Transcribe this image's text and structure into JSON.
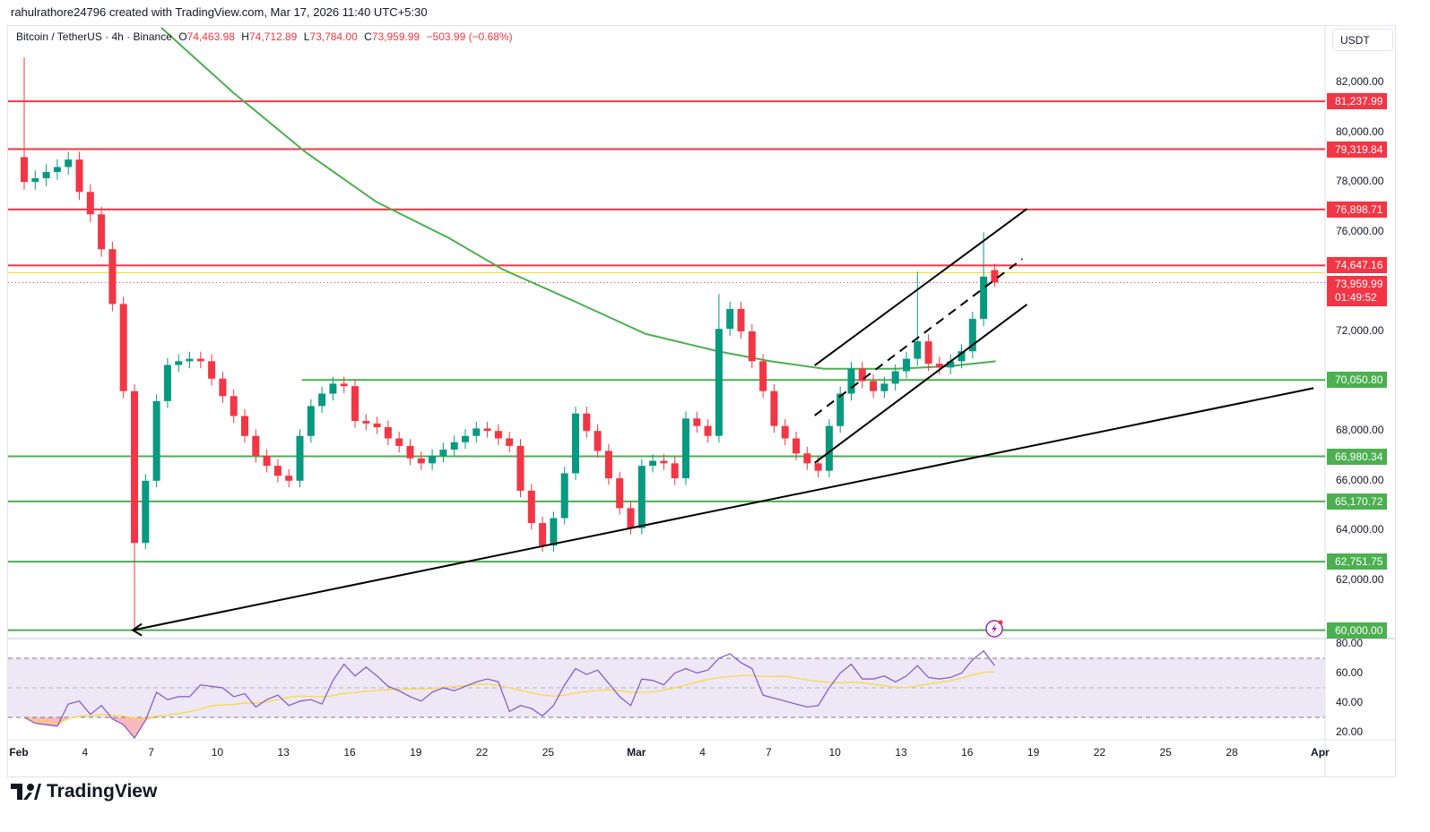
{
  "attribution": "rahulrathore24796 created with TradingView.com, Mar 17, 2026 11:40 UTC+5:30",
  "legend": {
    "symbol": "Bitcoin / TetherUS · 4h · Binance",
    "open_key": "O",
    "open": "74,463.98",
    "high_key": "H",
    "high": "74,712.89",
    "low_key": "L",
    "low": "73,784.00",
    "close_key": "C",
    "close": "73,959.99",
    "change": "−503.99 (−0.68%)"
  },
  "currency_button": "USDT",
  "logo_text": "TradingView",
  "colors": {
    "up": "#089981",
    "down": "#f23645",
    "resistance": "#f23645",
    "support": "#4caf50",
    "ma": "#4caf50",
    "rsi": "#7e57c2",
    "rsi_signal": "#fdd835",
    "rsi_band": "#ede7f6",
    "trendline": "#000000"
  },
  "chart_data": {
    "type": "candlestick",
    "price_axis": {
      "ylim": [
        60000,
        82000
      ],
      "ticks": [
        "82,000.00",
        "80,000.00",
        "78,000.00",
        "76,000.00",
        "72,000.00",
        "68,000.00",
        "66,000.00",
        "64,000.00",
        "62,000.00"
      ],
      "tick_values": [
        82000,
        80000,
        78000,
        76000,
        72000,
        68000,
        66000,
        64000,
        62000
      ]
    },
    "time_axis": {
      "ticks": [
        {
          "label": "Feb",
          "date": "2026-02-01"
        },
        {
          "label": "4",
          "date": "2026-02-04"
        },
        {
          "label": "7",
          "date": "2026-02-07"
        },
        {
          "label": "10",
          "date": "2026-02-10"
        },
        {
          "label": "13",
          "date": "2026-02-13"
        },
        {
          "label": "16",
          "date": "2026-02-16"
        },
        {
          "label": "19",
          "date": "2026-02-19"
        },
        {
          "label": "22",
          "date": "2026-02-22"
        },
        {
          "label": "25",
          "date": "2026-02-25"
        },
        {
          "label": "Mar",
          "date": "2026-03-01"
        },
        {
          "label": "4",
          "date": "2026-03-04"
        },
        {
          "label": "7",
          "date": "2026-03-07"
        },
        {
          "label": "10",
          "date": "2026-03-10"
        },
        {
          "label": "13",
          "date": "2026-03-13"
        },
        {
          "label": "16",
          "date": "2026-03-16"
        },
        {
          "label": "19",
          "date": "2026-03-19"
        },
        {
          "label": "22",
          "date": "2026-03-22"
        },
        {
          "label": "25",
          "date": "2026-03-25"
        },
        {
          "label": "28",
          "date": "2026-03-28"
        },
        {
          "label": "Apr",
          "date": "2026-04-01"
        }
      ]
    },
    "candles": {
      "start": "2026-02-01T00:00",
      "interval_hours": 12,
      "first_open": 79000,
      "closes": [
        78000,
        78150,
        78400,
        78600,
        78900,
        77600,
        76700,
        75300,
        73100,
        69600,
        63500,
        66000,
        69200,
        70650,
        70800,
        70900,
        70800,
        70100,
        69400,
        68600,
        67800,
        67000,
        66600,
        66200,
        66000,
        67800,
        69000,
        69500,
        69900,
        69800,
        68400,
        68300,
        68150,
        67700,
        67400,
        66900,
        66700,
        67000,
        67250,
        67550,
        67800,
        68100,
        68000,
        67700,
        67400,
        65600,
        64300,
        63400,
        64500,
        66300,
        68700,
        68000,
        67200,
        66100,
        64900,
        64100,
        66600,
        66800,
        66700,
        66100,
        68500,
        68200,
        67800,
        72100,
        72900,
        72000,
        70800,
        69600,
        68200,
        67700,
        67100,
        66700,
        66400,
        68200,
        69500,
        70500,
        70000,
        69600,
        69900,
        70400,
        70900,
        71600,
        70700,
        70550,
        70800,
        71200,
        72500,
        74200,
        73959.99
      ],
      "extremes": {
        "0": {
          "h": 83000
        },
        "10": {
          "l": 60074
        },
        "63": {
          "h": 73500
        },
        "81": {
          "h": 74400
        },
        "87": {
          "h": 75980
        }
      },
      "last": {
        "open": 74463.98,
        "high": 74712.89,
        "low": 73784.0,
        "close": 73959.99
      }
    },
    "moving_average": [
      [
        "2026-02-07T11:00",
        84200
      ],
      [
        "2026-02-10T17:00",
        81600
      ],
      [
        "2026-02-14T00:00",
        79200
      ],
      [
        "2026-02-17T05:00",
        77200
      ],
      [
        "2026-02-20T12:00",
        75750
      ],
      [
        "2026-02-22T22:00",
        74500
      ],
      [
        "2026-02-26T05:00",
        73200
      ],
      [
        "2026-03-01T10:00",
        71900
      ],
      [
        "2026-03-04T17:00",
        71200
      ],
      [
        "2026-03-07T02:00",
        70800
      ],
      [
        "2026-03-09T12:00",
        70500
      ],
      [
        "2026-03-12T19:00",
        70500
      ],
      [
        "2026-03-15T05:00",
        70600
      ],
      [
        "2026-03-17T07:00",
        70800
      ]
    ],
    "levels": [
      {
        "price": 81237.99,
        "label": "81,237.99",
        "kind": "resistance"
      },
      {
        "price": 79319.84,
        "label": "79,319.84",
        "kind": "resistance"
      },
      {
        "price": 76898.71,
        "label": "76,898.71",
        "kind": "resistance"
      },
      {
        "price": 74647.16,
        "label": "74,647.16",
        "kind": "resistance"
      },
      {
        "price": 70050.8,
        "label": "70,050.80",
        "kind": "support",
        "from": "2026-02-13T20:00"
      },
      {
        "price": 66980.34,
        "label": "66,980.34",
        "kind": "support"
      },
      {
        "price": 65170.72,
        "label": "65,170.72",
        "kind": "support"
      },
      {
        "price": 62751.75,
        "label": "62,751.75",
        "kind": "support"
      },
      {
        "price": 60000.0,
        "label": "60,000.00",
        "kind": "support"
      }
    ],
    "previous_close": 74463.98,
    "current_price": {
      "price": 73959.99,
      "label": "73,959.99",
      "countdown": "01:49:52"
    },
    "trendlines": [
      {
        "name": "ascending-support",
        "from": [
          "2026-02-06T04:00",
          60000
        ],
        "to": [
          "2026-03-31T17:00",
          69720
        ],
        "style": "solid",
        "arrow_start": true
      },
      {
        "name": "channel-upper",
        "from": [
          "2026-03-09T02:00",
          70630
        ],
        "to": [
          "2026-03-18T17:00",
          76920
        ],
        "style": "solid"
      },
      {
        "name": "channel-lower",
        "from": [
          "2026-03-09T02:00",
          66720
        ],
        "to": [
          "2026-03-18T17:00",
          73080
        ],
        "style": "solid"
      },
      {
        "name": "channel-mid",
        "from": [
          "2026-03-09T02:00",
          68620
        ],
        "to": [
          "2026-03-18T12:00",
          74910
        ],
        "style": "dashed"
      }
    ],
    "rsi": {
      "ylim": [
        0,
        100
      ],
      "ticks": [
        "80.00",
        "60.00",
        "40.00",
        "20.00"
      ],
      "tick_values": [
        80,
        60,
        40,
        20
      ],
      "bands": {
        "upper": 70,
        "middle": 50,
        "lower": 30
      },
      "start": "2026-02-01T00:00",
      "interval_hours": 12,
      "values": [
        30,
        26,
        25,
        24,
        39,
        41,
        32,
        38,
        29,
        25,
        16,
        28,
        47,
        42,
        44,
        44,
        52,
        51,
        50,
        44,
        46,
        37,
        42,
        45,
        38,
        41,
        42,
        39,
        55,
        66,
        58,
        64,
        58,
        51,
        48,
        44,
        41,
        47,
        50,
        48,
        51,
        54,
        56,
        54,
        34,
        38,
        36,
        31,
        38,
        52,
        63,
        59,
        62,
        53,
        44,
        38,
        56,
        55,
        52,
        60,
        63,
        60,
        62,
        70,
        73,
        67,
        63,
        45,
        43,
        41,
        39,
        37,
        38,
        50,
        60,
        66,
        56,
        56,
        58,
        54,
        58,
        65,
        57,
        56,
        57,
        60,
        69,
        75,
        65
      ]
    }
  }
}
